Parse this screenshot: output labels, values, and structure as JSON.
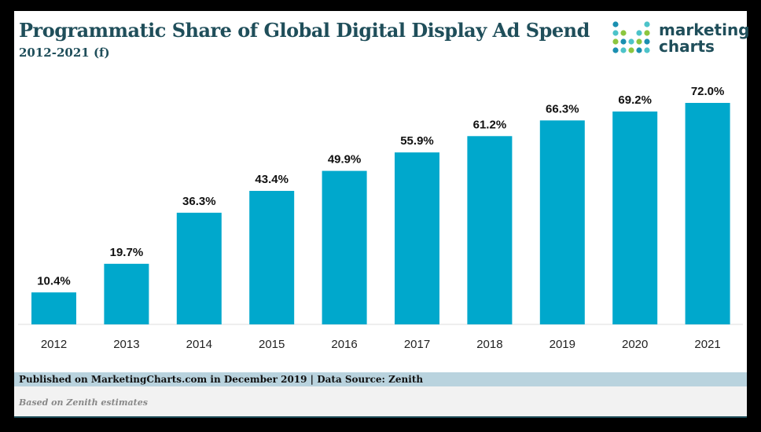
{
  "title": "Programmatic Share of Global Digital Display Ad Spend",
  "subtitle": "2012-2021 (f)",
  "logo": {
    "line1": "marketing",
    "line2": "charts"
  },
  "footer": {
    "published": "Published on MarketingCharts.com in December 2019 | Data Source: Zenith",
    "note": "Based on Zenith estimates"
  },
  "colors": {
    "bar": "#00a8cc",
    "title": "#1f4e5a"
  },
  "chart_data": {
    "type": "bar",
    "title": "Programmatic Share of Global Digital Display Ad Spend",
    "subtitle": "2012-2021 (f)",
    "categories": [
      "2012",
      "2013",
      "2014",
      "2015",
      "2016",
      "2017",
      "2018",
      "2019",
      "2020",
      "2021"
    ],
    "values": [
      10.4,
      19.7,
      36.3,
      43.4,
      49.9,
      55.9,
      61.2,
      66.3,
      69.2,
      72.0
    ],
    "labels": [
      "10.4%",
      "19.7%",
      "36.3%",
      "43.4%",
      "49.9%",
      "55.9%",
      "61.2%",
      "66.3%",
      "69.2%",
      "72.0%"
    ],
    "xlabel": "",
    "ylabel": "",
    "ylim": [
      0,
      72
    ],
    "grid": false
  }
}
